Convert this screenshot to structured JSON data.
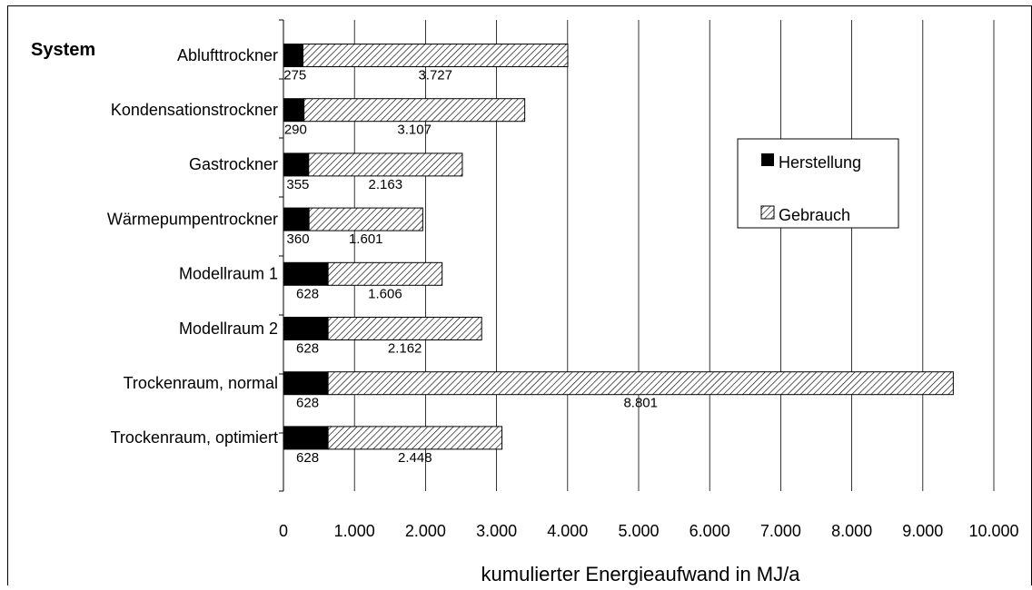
{
  "chart_data": {
    "type": "bar",
    "orientation": "horizontal",
    "stacked": true,
    "title": "System",
    "xlabel": "kumulierter Energieaufwand in MJ/a",
    "ylabel": "",
    "xlim": [
      0,
      10000
    ],
    "xticks": [
      0,
      1000,
      2000,
      3000,
      4000,
      5000,
      6000,
      7000,
      8000,
      9000,
      10000
    ],
    "xtick_labels": [
      "0",
      "1.000",
      "2.000",
      "3.000",
      "4.000",
      "5.000",
      "6.000",
      "7.000",
      "8.000",
      "9.000",
      "10.000"
    ],
    "grid": "vertical",
    "legend_position": "right",
    "categories": [
      "Ablufttrockner",
      "Kondensationstrockner",
      "Gastrockner",
      "Wärmepumpentrockner",
      "Modellraum 1",
      "Modellraum 2",
      "Trockenraum, normal",
      "Trockenraum, optimiert"
    ],
    "series": [
      {
        "name": "Herstellung",
        "values": [
          275,
          290,
          355,
          360,
          628,
          628,
          628,
          628
        ],
        "labels": [
          "275",
          "290",
          "355",
          "360",
          "628",
          "628",
          "628",
          "628"
        ],
        "color": "#000000",
        "pattern": "solid"
      },
      {
        "name": "Gebrauch",
        "values": [
          3727,
          3107,
          2163,
          1601,
          1606,
          2162,
          8801,
          2448
        ],
        "labels": [
          "3.727",
          "3.107",
          "2.163",
          "1.601",
          "1.606",
          "2.162",
          "8.801",
          "2.448"
        ],
        "color": "#ffffff",
        "pattern": "diagonal-hatch"
      }
    ]
  }
}
